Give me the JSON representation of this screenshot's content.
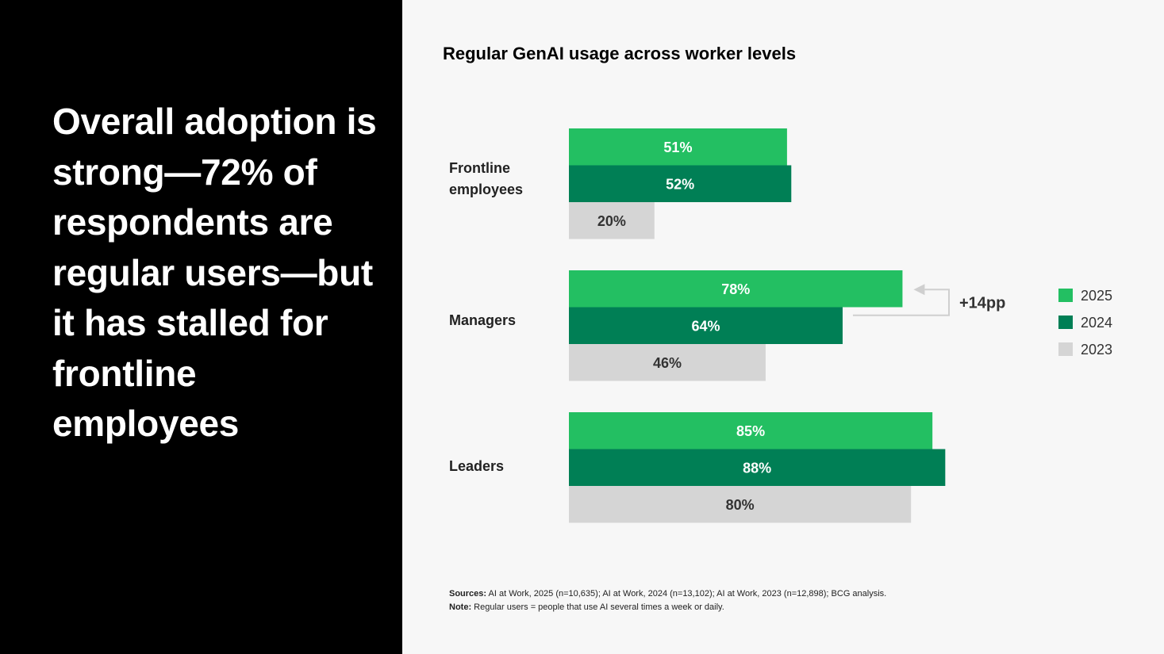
{
  "headline": "Overall adoption is strong—72% of respondents are regular users—but it has stalled for frontline employees",
  "colors": {
    "series_2025": "#23bf62",
    "series_2024": "#007f55",
    "series_2023": "#d5d5d5",
    "background": "#f7f7f7",
    "panel": "#000000"
  },
  "chart_data": {
    "type": "bar",
    "orientation": "horizontal",
    "title": "Regular GenAI usage across worker levels",
    "categories": [
      "Frontline employees",
      "Managers",
      "Leaders"
    ],
    "series": [
      {
        "name": "2025",
        "values": [
          51,
          78,
          85
        ]
      },
      {
        "name": "2024",
        "values": [
          52,
          64,
          88
        ]
      },
      {
        "name": "2023",
        "values": [
          20,
          46,
          80
        ]
      }
    ],
    "unit": "%",
    "xlim": [
      0,
      100
    ],
    "legend_position": "right",
    "annotation": {
      "text": "+14pp",
      "category": "Managers",
      "from_series": "2024",
      "to_series": "2025"
    }
  },
  "footnotes": {
    "sources_label": "Sources:",
    "sources_text": "AI at Work, 2025 (n=10,635);  AI at Work, 2024 (n=13,102); AI at Work, 2023 (n=12,898); BCG analysis.",
    "note_label": "Note:",
    "note_text": "Regular users = people that use AI several times a week or daily."
  }
}
